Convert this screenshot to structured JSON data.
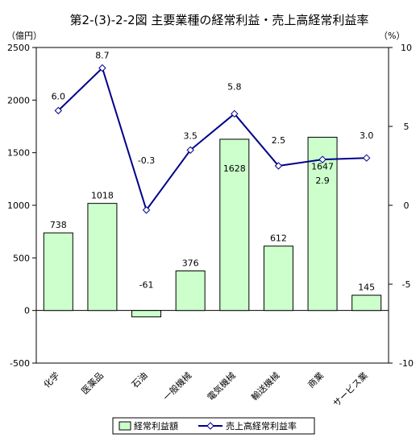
{
  "chart_data": {
    "type": "bar",
    "title": "第2-(3)-2-2図 主要業種の経常利益・売上高経常利益率",
    "left_unit": "（億円）",
    "right_unit": "（%）",
    "categories": [
      "化学",
      "医薬品",
      "石油",
      "一般機械",
      "電気機械",
      "輸送機械",
      "商業",
      "サービス業"
    ],
    "series": [
      {
        "name": "経常利益額",
        "type": "bar",
        "axis": "left",
        "values": [
          738,
          1018,
          -61,
          376,
          1628,
          612,
          1647,
          145
        ],
        "labels": [
          "738",
          "1018",
          "-61",
          "376",
          "1628",
          "612",
          "1647",
          "145"
        ]
      },
      {
        "name": "売上高経常利益率",
        "type": "line",
        "axis": "right",
        "values": [
          6.0,
          8.7,
          -0.3,
          3.5,
          5.8,
          2.5,
          2.9,
          3.0
        ],
        "labels": [
          "6.0",
          "8.7",
          "-0.3",
          "3.5",
          "5.8",
          "2.5",
          "2.9",
          "3.0"
        ]
      }
    ],
    "left_axis": {
      "min": -500,
      "max": 2500,
      "step": 500,
      "ticks": [
        "-500",
        "0",
        "500",
        "1000",
        "1500",
        "2000",
        "2500"
      ]
    },
    "right_axis": {
      "min": -10,
      "max": 10,
      "step": 5,
      "ticks": [
        "-10",
        "-5",
        "0",
        "5",
        "10"
      ]
    },
    "grid": false,
    "legend_position": "bottom",
    "colors": {
      "bar_fill": "#ccffcc",
      "bar_stroke": "#000000",
      "line": "#00008b",
      "marker_fill": "#ffffff"
    }
  }
}
